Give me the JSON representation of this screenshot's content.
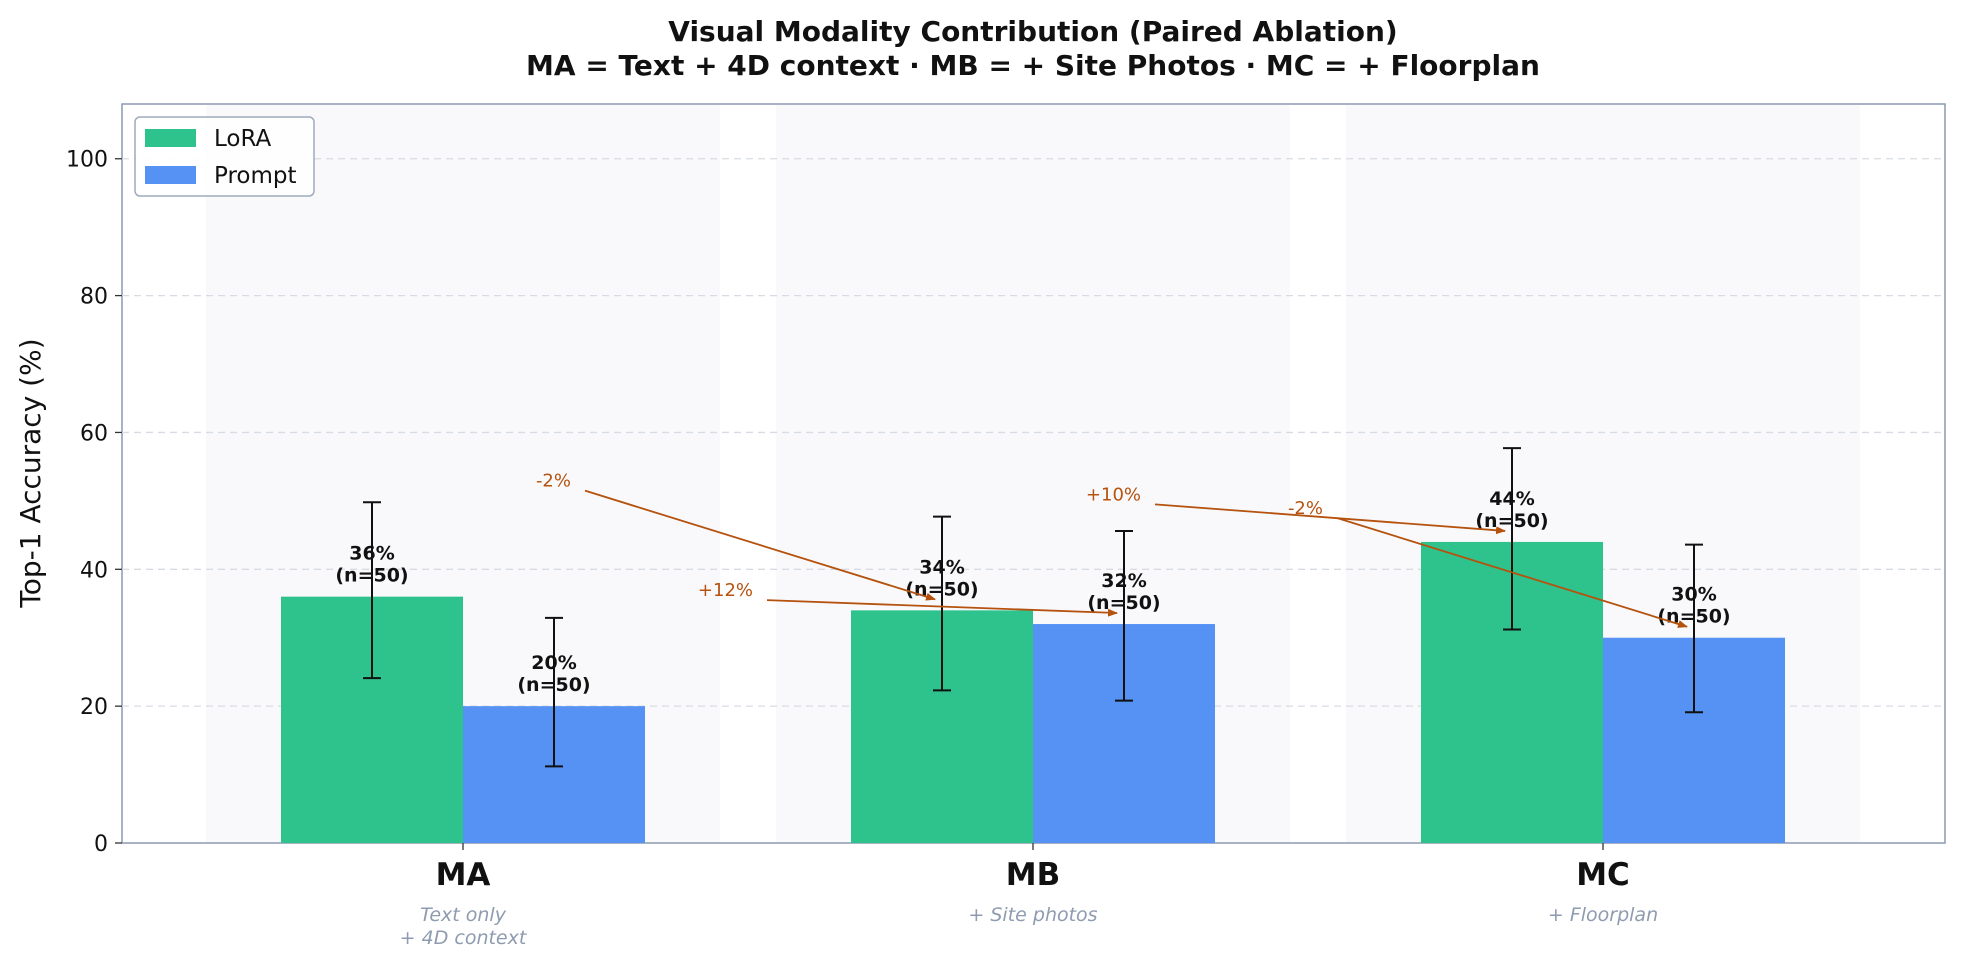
{
  "chart_data": {
    "type": "bar",
    "title": "Visual Modality Contribution (Paired Ablation)",
    "subtitle": "MA = Text + 4D context  ·  MB = + Site Photos  ·  MC = + Floorplan",
    "xlabel": "",
    "ylabel": "Top-1 Accuracy (%)",
    "ylim": [
      0,
      108
    ],
    "yticks": [
      0,
      20,
      40,
      60,
      80,
      100
    ],
    "grid": "horizontal dashed",
    "legend_position": "top-left",
    "categories": [
      "MA",
      "MB",
      "MC"
    ],
    "category_subtitles": [
      [
        "Text only",
        "+ 4D context"
      ],
      [
        "+ Site photos"
      ],
      [
        "+ Floorplan"
      ]
    ],
    "series": [
      {
        "name": "LoRA",
        "color": "#2ec28c",
        "values": [
          36,
          34,
          44
        ],
        "error_low": [
          24.1,
          22.3,
          31.2
        ],
        "error_high": [
          49.8,
          47.7,
          57.7
        ],
        "labels": [
          [
            "36%",
            "(n=50)"
          ],
          [
            "34%",
            "(n=50)"
          ],
          [
            "44%",
            "(n=50)"
          ]
        ]
      },
      {
        "name": "Prompt",
        "color": "#5592f4",
        "values": [
          20,
          32,
          30
        ],
        "error_low": [
          11.2,
          20.8,
          19.1
        ],
        "error_high": [
          32.9,
          45.6,
          43.6
        ],
        "labels": [
          [
            "20%",
            "(n=50)"
          ],
          [
            "32%",
            "(n=50)"
          ],
          [
            "30%",
            "(n=50)"
          ]
        ]
      }
    ],
    "annotations": [
      {
        "text": "-2%",
        "color": "#b5520e",
        "from_category": "MA",
        "from_series": "LoRA",
        "to_category": "MB",
        "to_series": "LoRA"
      },
      {
        "text": "+12%",
        "color": "#b5520e",
        "from_category": "MA",
        "from_series": "Prompt",
        "to_category": "MB",
        "to_series": "Prompt"
      },
      {
        "text": "+10%",
        "color": "#b5520e",
        "from_category": "MB",
        "from_series": "LoRA",
        "to_category": "MC",
        "to_series": "LoRA"
      },
      {
        "text": "-2%",
        "color": "#b5520e",
        "from_category": "MB",
        "from_series": "Prompt",
        "to_category": "MC",
        "to_series": "Prompt"
      }
    ]
  }
}
